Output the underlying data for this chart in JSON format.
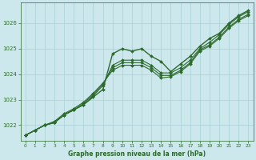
{
  "title": "Graphe pression niveau de la mer (hPa)",
  "bg_color": "#cce8ec",
  "grid_color": "#aad0d8",
  "line_color": "#2d6a2d",
  "marker_color": "#2d6a2d",
  "xlim": [
    -0.5,
    23.5
  ],
  "ylim": [
    1021.4,
    1026.8
  ],
  "yticks": [
    1022,
    1023,
    1024,
    1025,
    1026
  ],
  "xticks": [
    0,
    1,
    2,
    3,
    4,
    5,
    6,
    7,
    8,
    9,
    10,
    11,
    12,
    13,
    14,
    15,
    16,
    17,
    18,
    19,
    20,
    21,
    22,
    23
  ],
  "lines": [
    {
      "y": [
        1021.6,
        1021.8,
        1022.0,
        1022.1,
        1022.4,
        1022.6,
        1022.8,
        1023.1,
        1023.4,
        1024.8,
        1025.0,
        1024.9,
        1025.0,
        1024.7,
        1024.5,
        1024.1,
        1024.4,
        1024.7,
        1025.1,
        1025.4,
        1025.6,
        1026.0,
        1026.3,
        1026.5
      ],
      "lw": 1.0,
      "marker": true
    },
    {
      "y": [
        1021.6,
        1021.8,
        1022.0,
        1022.1,
        1022.4,
        1022.6,
        1022.8,
        1023.15,
        1023.55,
        1024.35,
        1024.55,
        1024.55,
        1024.55,
        1024.35,
        1024.05,
        1024.05,
        1024.25,
        1024.55,
        1025.0,
        1025.25,
        1025.55,
        1025.95,
        1026.25,
        1026.45
      ],
      "lw": 0.8,
      "marker": false
    },
    {
      "y": [
        1021.6,
        1021.8,
        1022.0,
        1022.1,
        1022.4,
        1022.6,
        1022.85,
        1023.2,
        1023.6,
        1024.25,
        1024.45,
        1024.45,
        1024.45,
        1024.25,
        1023.95,
        1023.95,
        1024.15,
        1024.45,
        1024.95,
        1025.15,
        1025.45,
        1025.85,
        1026.15,
        1026.35
      ],
      "lw": 0.8,
      "marker": false
    },
    {
      "y": [
        1021.6,
        1021.8,
        1022.0,
        1022.15,
        1022.45,
        1022.65,
        1022.9,
        1023.25,
        1023.65,
        1024.15,
        1024.35,
        1024.35,
        1024.35,
        1024.15,
        1023.85,
        1023.9,
        1024.1,
        1024.4,
        1024.9,
        1025.1,
        1025.4,
        1025.8,
        1026.1,
        1026.3
      ],
      "lw": 0.8,
      "marker": false
    }
  ]
}
